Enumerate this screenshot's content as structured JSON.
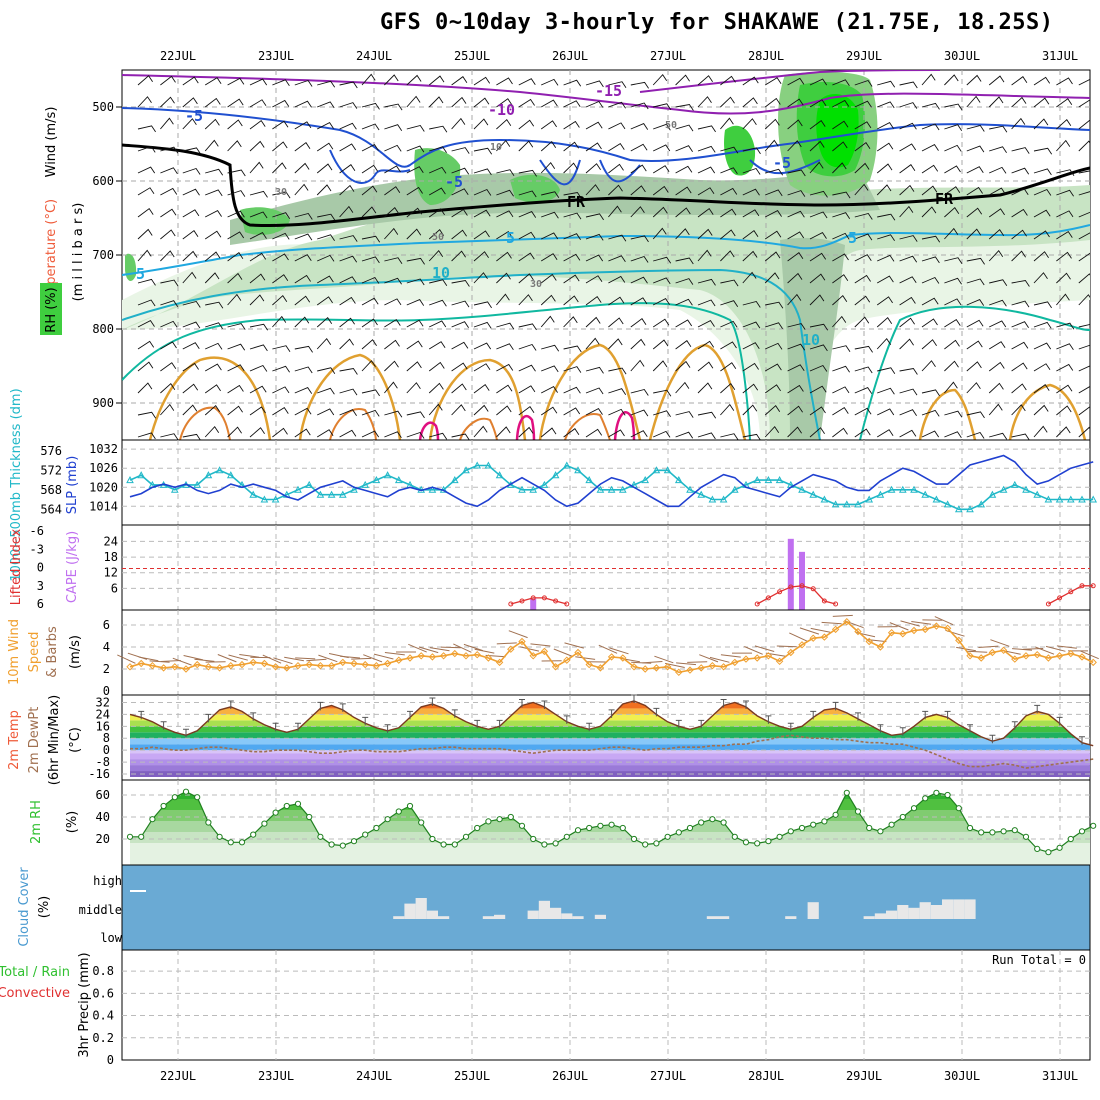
{
  "title": "GFS 0~10day 3-hourly for SHAKAWE (21.75E, 18.25S)",
  "days": [
    "22JUL",
    "23JUL",
    "24JUL",
    "25JUL",
    "26JUL",
    "27JUL",
    "28JUL",
    "29JUL",
    "30JUL",
    "31JUL"
  ],
  "colors": {
    "rh": "#3fce3f",
    "temp": "#ef5b3a",
    "wind_label": "#2b2bd0",
    "cape": "#c070f0",
    "li": "#e03030",
    "thick": "#20b8c8",
    "slp": "#2040d0",
    "wind10": "#f0a030",
    "dew": "#a07050",
    "precip_total": "#30c030",
    "precip_conv": "#e03030",
    "cloud_bg": "#6aaad4",
    "cloud_fg": "#e8e8e8"
  },
  "panels": {
    "upper": {
      "axis_labels": {
        "wind": "Wind (m/s)",
        "temp": "Temperature (°C)",
        "pressure": "(m i l l i b a r s)",
        "rh": "RH (%)"
      },
      "y_ticks": [
        "500",
        "600",
        "700",
        "800",
        "900"
      ],
      "contour_labels": {
        "t_m15": "-15",
        "t_m10": "-10",
        "t_m5a": "-5",
        "t_m5b": "-5",
        "t_m5c": "-5",
        "t_5a": "5",
        "t_5b": "5",
        "t_5c": "5",
        "t_10a": "10",
        "t_10b": "10",
        "fr1": "FR",
        "fr2": "FR",
        "rh50a": "50",
        "rh50b": "50",
        "rh30a": "30",
        "rh30b": "30",
        "rh10a": "10"
      }
    },
    "thick": {
      "label_thick": "1000~500mb Thickness (dm)",
      "label_slp": "SLP (mb)",
      "left_ticks": [
        "576",
        "572",
        "568",
        "564"
      ],
      "right_ticks": [
        "1032",
        "1026",
        "1020",
        "1014"
      ]
    },
    "cape": {
      "label_li": "Lifted Index",
      "label_cape": "CAPE (J/kg)",
      "left_ticks": [
        "-6",
        "-3",
        "0",
        "3",
        "6"
      ],
      "right_ticks": [
        "24",
        "18",
        "12",
        "6"
      ]
    },
    "wind10": {
      "label_a": "10m Wind",
      "label_b": "Speed",
      "label_c": "& Barbs",
      "unit": "(m/s)",
      "ticks": [
        "6",
        "4",
        "2",
        "0"
      ]
    },
    "temp2m": {
      "label_a": "2m Temp",
      "label_b": "2m DewPt",
      "label_c": "(6hr Min/Max)",
      "unit": "(°C)",
      "ticks": [
        "32",
        "24",
        "16",
        "8",
        "0",
        "-8",
        "-16"
      ]
    },
    "rh2m": {
      "label": "2m RH",
      "unit": "(%)",
      "ticks": [
        "60",
        "40",
        "20"
      ]
    },
    "cloud": {
      "label": "Cloud Cover",
      "unit": "(%)",
      "levels": [
        "high",
        "middle",
        "low"
      ]
    },
    "precip": {
      "label_total": "Total / Rain",
      "label_conv": "Convective",
      "label_y": "3hr Precip (mm)",
      "run_total": "Run Total = 0",
      "ticks": [
        "0.8",
        "0.6",
        "0.4",
        "0.2",
        "0"
      ]
    }
  },
  "chart_data": {
    "type": "line",
    "x_start": "21JUL 12Z",
    "step_hours": 3,
    "series": [
      {
        "name": "SLP (mb)",
        "values": [
          1017,
          1018,
          1020,
          1021,
          1020,
          1021,
          1019,
          1018,
          1019,
          1021,
          1020,
          1021,
          1020,
          1019,
          1017,
          1016,
          1018,
          1020,
          1021,
          1022,
          1020,
          1019,
          1018,
          1017,
          1019,
          1020,
          1019,
          1020,
          1019,
          1017,
          1015,
          1014,
          1016,
          1019,
          1021,
          1023,
          1021,
          1019,
          1016,
          1014,
          1015,
          1018,
          1021,
          1023,
          1022,
          1020,
          1018,
          1016,
          1014,
          1014,
          1017,
          1020,
          1022,
          1024,
          1023,
          1020,
          1019,
          1018,
          1017,
          1020,
          1022,
          1024,
          1023,
          1022,
          1020,
          1019,
          1019,
          1022,
          1024,
          1026,
          1025,
          1023,
          1021,
          1021,
          1024,
          1027,
          1028,
          1029,
          1030,
          1028,
          1024,
          1021,
          1022,
          1024,
          1026,
          1027,
          1028
        ]
      },
      {
        "name": "1000~500mb Thickness (dm)",
        "values": [
          570,
          571,
          569,
          569,
          568,
          569,
          569,
          571,
          572,
          571,
          569,
          567,
          566,
          566,
          567,
          568,
          569,
          567,
          567,
          567,
          568,
          569,
          570,
          571,
          570,
          569,
          568,
          568,
          568,
          570,
          572,
          573,
          573,
          571,
          569,
          568,
          568,
          569,
          571,
          573,
          572,
          570,
          568,
          568,
          568,
          569,
          570,
          572,
          572,
          570,
          568,
          567,
          566,
          566,
          568,
          569,
          570,
          570,
          570,
          569,
          568,
          567,
          566,
          565,
          565,
          565,
          566,
          567,
          568,
          568,
          568,
          567,
          566,
          565,
          564,
          564,
          565,
          567,
          568,
          569,
          568,
          567,
          566,
          566,
          566,
          566,
          566
        ]
      },
      {
        "name": "Lifted Index",
        "values": [
          6,
          6,
          6,
          6,
          6,
          6,
          6,
          6,
          6,
          6,
          6,
          6,
          6,
          6,
          6,
          6,
          6,
          6,
          6,
          6,
          6,
          6,
          6,
          6,
          6,
          6,
          6,
          6,
          6,
          6,
          6,
          6,
          6,
          6,
          6,
          5.5,
          5,
          5,
          5.5,
          6,
          6,
          6,
          6,
          6,
          6,
          6,
          6,
          6,
          6,
          6,
          6,
          6,
          6,
          6,
          6,
          6,
          6,
          5,
          4,
          3.2,
          3,
          3.5,
          5.5,
          6,
          6,
          6,
          6,
          6,
          6,
          6,
          6,
          6,
          6,
          6,
          6,
          6,
          6,
          6,
          6,
          6,
          6,
          6,
          6,
          5,
          4,
          3,
          3,
          4
        ]
      },
      {
        "name": "10m Wind Speed (m/s)",
        "values": [
          2.2,
          2.5,
          2.3,
          2.1,
          2.2,
          2.0,
          2.4,
          2.2,
          2.1,
          2.3,
          2.4,
          2.6,
          2.5,
          2.2,
          2.1,
          2.3,
          2.4,
          2.3,
          2.3,
          2.6,
          2.5,
          2.4,
          2.3,
          2.5,
          2.8,
          3.0,
          3.2,
          3.1,
          3.2,
          3.4,
          3.2,
          3.3,
          3.0,
          2.6,
          3.8,
          4.5,
          3.2,
          3.6,
          2.2,
          2.8,
          3.5,
          2.4,
          2.1,
          3.1,
          3.0,
          2.2,
          2.0,
          2.1,
          2.2,
          1.7,
          1.9,
          2.1,
          2.3,
          2.2,
          2.6,
          2.9,
          3.0,
          3.2,
          2.7,
          3.5,
          4.2,
          4.8,
          4.9,
          5.6,
          6.3,
          5.4,
          4.5,
          4.0,
          5.3,
          5.2,
          5.5,
          5.6,
          5.9,
          5.7,
          4.6,
          3.2,
          3.0,
          3.5,
          3.7,
          2.9,
          3.2,
          3.3,
          3.0,
          3.2,
          3.4,
          3.1,
          2.6
        ]
      },
      {
        "name": "2m Temp (°C)",
        "values": [
          24,
          22,
          19,
          15,
          12,
          10,
          13,
          20,
          27,
          29,
          26,
          21,
          17,
          14,
          12,
          14,
          21,
          28,
          30,
          27,
          22,
          18,
          15,
          13,
          15,
          22,
          29,
          31,
          28,
          23,
          19,
          16,
          14,
          16,
          23,
          30,
          32,
          29,
          24,
          19,
          16,
          14,
          16,
          23,
          31,
          33,
          30,
          24,
          19,
          16,
          14,
          16,
          23,
          30,
          32,
          29,
          23,
          19,
          16,
          14,
          16,
          22,
          27,
          28,
          25,
          21,
          17,
          13,
          10,
          11,
          16,
          22,
          24,
          22,
          17,
          13,
          9,
          6,
          8,
          15,
          23,
          26,
          24,
          18,
          11,
          5,
          3
        ]
      },
      {
        "name": "2m DewPt (°C)",
        "values": [
          1,
          1,
          2,
          1,
          0,
          0,
          1,
          2,
          2,
          1,
          0,
          -1,
          -1,
          0,
          0,
          0,
          -1,
          -2,
          -2,
          -1,
          0,
          0,
          -1,
          -1,
          -1,
          0,
          1,
          1,
          2,
          2,
          1,
          1,
          1,
          1,
          0,
          -1,
          -2,
          -1,
          0,
          0,
          0,
          0,
          1,
          2,
          2,
          1,
          0,
          1,
          1,
          2,
          2,
          2,
          3,
          3,
          4,
          4,
          6,
          7,
          9,
          10,
          9,
          8,
          8,
          7,
          7,
          6,
          5,
          5,
          4,
          4,
          2,
          0,
          -3,
          -6,
          -9,
          -11,
          -11,
          -10,
          -9,
          -10,
          -12,
          -11,
          -10,
          -9,
          -8,
          -7,
          -6
        ]
      },
      {
        "name": "2m RH (%)",
        "values": [
          22,
          22,
          38,
          50,
          58,
          63,
          58,
          35,
          22,
          17,
          17,
          24,
          34,
          44,
          50,
          52,
          40,
          22,
          15,
          14,
          18,
          24,
          30,
          38,
          45,
          50,
          35,
          20,
          15,
          15,
          22,
          30,
          36,
          38,
          40,
          32,
          20,
          15,
          16,
          22,
          28,
          30,
          32,
          33,
          30,
          20,
          15,
          16,
          22,
          26,
          30,
          35,
          38,
          35,
          22,
          17,
          16,
          18,
          22,
          27,
          30,
          33,
          36,
          42,
          62,
          45,
          30,
          27,
          33,
          40,
          48,
          57,
          62,
          60,
          48,
          30,
          26,
          26,
          27,
          28,
          22,
          11,
          8,
          12,
          20,
          27,
          32
        ]
      },
      {
        "name": "CAPE (J/kg)",
        "values": [
          0,
          0,
          0,
          0,
          0,
          0,
          0,
          0,
          0,
          0,
          0,
          0,
          0,
          0,
          0,
          0,
          0,
          0,
          0,
          0,
          0,
          0,
          0,
          0,
          0,
          0,
          0,
          0,
          0,
          0,
          0,
          0,
          0,
          0,
          0,
          0,
          2,
          0,
          0,
          0,
          0,
          0,
          0,
          0,
          0,
          0,
          0,
          0,
          0,
          0,
          0,
          0,
          0,
          0,
          0,
          0,
          0,
          0,
          0,
          25,
          20,
          0,
          0,
          0,
          0,
          0,
          0,
          0,
          0,
          0,
          0,
          0,
          0,
          0,
          0,
          0,
          0,
          0,
          0,
          0,
          0,
          0,
          0,
          0,
          0,
          0,
          0
        ]
      }
    ],
    "cloud_mid_pct": [
      0,
      0,
      0,
      0,
      0,
      0,
      0,
      0,
      0,
      0,
      0,
      0,
      0,
      0,
      0,
      0,
      0,
      0,
      0,
      0,
      0,
      0,
      0,
      0,
      10,
      55,
      75,
      30,
      10,
      0,
      0,
      0,
      10,
      15,
      0,
      0,
      30,
      65,
      40,
      20,
      10,
      0,
      15,
      0,
      0,
      0,
      0,
      0,
      0,
      0,
      0,
      0,
      10,
      10,
      0,
      0,
      0,
      0,
      0,
      10,
      0,
      60,
      0,
      0,
      0,
      0,
      10,
      20,
      30,
      50,
      40,
      60,
      50,
      70,
      70,
      70,
      0,
      0,
      0,
      0,
      0,
      0,
      0,
      0,
      0,
      0,
      0
    ],
    "precip_mm": 0,
    "freezing_level_mb": 620,
    "ylim": {
      "pressure": [
        450,
        950
      ],
      "thickness": [
        562,
        577
      ],
      "slp": [
        1010,
        1033
      ],
      "lifted_index": [
        6,
        -6
      ],
      "cape": [
        0,
        28
      ],
      "wind10": [
        0,
        7
      ],
      "temp2m": [
        -18,
        35
      ],
      "rh2m": [
        0,
        70
      ],
      "precip": [
        0,
        1
      ]
    },
    "xlabel": "",
    "grid": true
  }
}
